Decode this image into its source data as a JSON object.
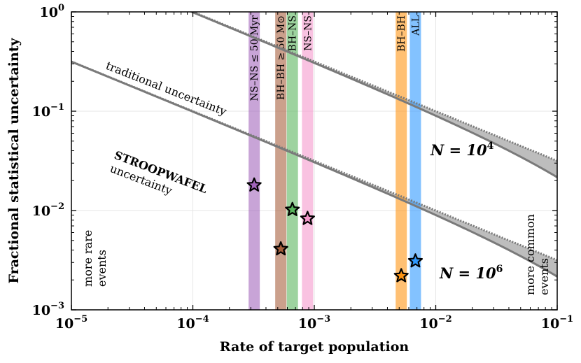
{
  "chart_data": {
    "type": "line",
    "xlabel": "Rate of target population",
    "ylabel": "Fractional statistical uncertainty",
    "xscale": "log",
    "yscale": "log",
    "xlim": [
      1e-05,
      0.1
    ],
    "ylim": [
      0.001,
      1
    ],
    "grid": true,
    "x_ticks": [
      {
        "value": 1e-05,
        "base": "10",
        "exp": "−5"
      },
      {
        "value": 0.0001,
        "base": "10",
        "exp": "−4"
      },
      {
        "value": 0.001,
        "base": "10",
        "exp": "−3"
      },
      {
        "value": 0.01,
        "base": "10",
        "exp": "−2"
      },
      {
        "value": 0.1,
        "base": "10",
        "exp": "−1"
      }
    ],
    "y_ticks": [
      {
        "value": 0.001,
        "base": "10",
        "exp": "−3"
      },
      {
        "value": 0.01,
        "base": "10",
        "exp": "−2"
      },
      {
        "value": 0.1,
        "base": "10",
        "exp": "−1"
      },
      {
        "value": 1,
        "base": "10",
        "exp": "0"
      }
    ],
    "regions": [
      {
        "N": 10000,
        "label_main": "N = 10",
        "label_exp": "4"
      },
      {
        "N": 1000000,
        "label_main": "N = 10",
        "label_exp": "6"
      }
    ],
    "curves_description": [
      "traditional uncertainty (dotted) = 1/sqrt(N·rate)",
      "STROOPWAFEL uncertainty (solid) = (1/sqrt(N))·(1/sqrt(rate) − 1)"
    ],
    "annotations": {
      "traditional": "traditional uncertainty",
      "stroopwafel_1": "STROOPWAFEL",
      "stroopwafel_2": "uncertainty",
      "rare_1": "more rare",
      "rare_2": "events",
      "common_1": "more common",
      "common_2": "events"
    },
    "bands": [
      {
        "label": "NS–NS ≤ 50 Myr",
        "x_center": 0.00032,
        "color": "#9b59b6"
      },
      {
        "label": "BH–BH ≥ 50 M⊙",
        "x_center": 0.00053,
        "color": "#a0522d"
      },
      {
        "label": "BH–NS",
        "x_center": 0.00066,
        "color": "#4caf50"
      },
      {
        "label": "NS–NS",
        "x_center": 0.00088,
        "color": "#f48fc8"
      },
      {
        "label": "BH–BH",
        "x_center": 0.0052,
        "color": "#ff8c00"
      },
      {
        "label": "ALL",
        "x_center": 0.0068,
        "color": "#1e90ff"
      }
    ],
    "stars": [
      {
        "x": 0.00032,
        "y": 0.018,
        "color": "#9b59b6"
      },
      {
        "x": 0.00053,
        "y": 0.0041,
        "color": "#a0522d"
      },
      {
        "x": 0.00066,
        "y": 0.0102,
        "color": "#4caf50"
      },
      {
        "x": 0.00088,
        "y": 0.0083,
        "color": "#f48fc8"
      },
      {
        "x": 0.0052,
        "y": 0.0022,
        "color": "#ff8c00"
      },
      {
        "x": 0.0068,
        "y": 0.0031,
        "color": "#1e90ff"
      }
    ],
    "colors": {
      "fill": "#bdbdbd",
      "curve": "#7a7a7a",
      "grid": "#e6e6e6"
    }
  }
}
